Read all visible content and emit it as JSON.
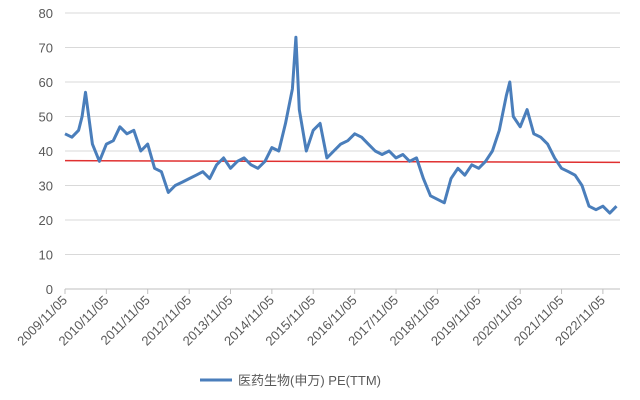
{
  "chart_data": {
    "type": "line",
    "x": [
      "2009/11/05",
      "2010/01/05",
      "2010/03/05",
      "2010/04/05",
      "2010/05/05",
      "2010/07/05",
      "2010/09/05",
      "2010/11/05",
      "2011/01/05",
      "2011/03/05",
      "2011/05/05",
      "2011/07/05",
      "2011/09/05",
      "2011/11/05",
      "2012/01/05",
      "2012/03/05",
      "2012/05/05",
      "2012/07/05",
      "2012/09/05",
      "2012/11/05",
      "2013/01/05",
      "2013/03/05",
      "2013/05/05",
      "2013/07/05",
      "2013/09/05",
      "2013/11/05",
      "2014/01/05",
      "2014/03/05",
      "2014/05/05",
      "2014/07/05",
      "2014/09/05",
      "2014/11/05",
      "2015/01/05",
      "2015/03/05",
      "2015/05/05",
      "2015/06/05",
      "2015/07/05",
      "2015/09/05",
      "2015/11/05",
      "2016/01/05",
      "2016/03/05",
      "2016/05/05",
      "2016/07/05",
      "2016/09/05",
      "2016/11/05",
      "2017/01/05",
      "2017/03/05",
      "2017/05/05",
      "2017/07/05",
      "2017/09/05",
      "2017/11/05",
      "2018/01/05",
      "2018/03/05",
      "2018/05/05",
      "2018/07/05",
      "2018/09/05",
      "2018/11/05",
      "2019/01/05",
      "2019/03/05",
      "2019/05/05",
      "2019/07/05",
      "2019/09/05",
      "2019/11/05",
      "2020/01/05",
      "2020/03/05",
      "2020/05/05",
      "2020/07/05",
      "2020/08/05",
      "2020/09/05",
      "2020/11/05",
      "2021/01/05",
      "2021/03/05",
      "2021/05/05",
      "2021/07/05",
      "2021/09/05",
      "2021/11/05",
      "2022/01/05",
      "2022/03/05",
      "2022/05/05",
      "2022/07/05",
      "2022/09/05",
      "2022/11/05",
      "2023/01/05",
      "2023/03/05"
    ],
    "series": [
      {
        "name": "医药生物(申万) PE(TTM)",
        "color": "#4a7ebb",
        "values": [
          45,
          44,
          46,
          50,
          57,
          42,
          37,
          42,
          43,
          47,
          45,
          46,
          40,
          42,
          35,
          34,
          28,
          30,
          31,
          32,
          33,
          34,
          32,
          36,
          38,
          35,
          37,
          38,
          36,
          35,
          37,
          41,
          40,
          48,
          58,
          73,
          52,
          40,
          46,
          48,
          38,
          40,
          42,
          43,
          45,
          44,
          42,
          40,
          39,
          40,
          38,
          39,
          37,
          38,
          32,
          27,
          26,
          25,
          32,
          35,
          33,
          36,
          35,
          37,
          40,
          46,
          56,
          60,
          50,
          47,
          52,
          45,
          44,
          42,
          38,
          35,
          34,
          33,
          30,
          24,
          23,
          24,
          22,
          24
        ]
      }
    ],
    "reference_line": {
      "color": "#e03030",
      "values": [
        37.2,
        36.7
      ]
    },
    "xlim": [
      "2009/11/05",
      "2023/04/05"
    ],
    "xticks": [
      "2009/11/05",
      "2010/11/05",
      "2011/11/05",
      "2012/11/05",
      "2013/11/05",
      "2014/11/05",
      "2015/11/05",
      "2016/11/05",
      "2017/11/05",
      "2018/11/05",
      "2019/11/05",
      "2020/11/05",
      "2021/11/05",
      "2022/11/05"
    ],
    "ylim": [
      0,
      80
    ],
    "yticks": [
      0,
      10,
      20,
      30,
      40,
      50,
      60,
      70,
      80
    ],
    "grid": true,
    "legend": "bottom"
  }
}
